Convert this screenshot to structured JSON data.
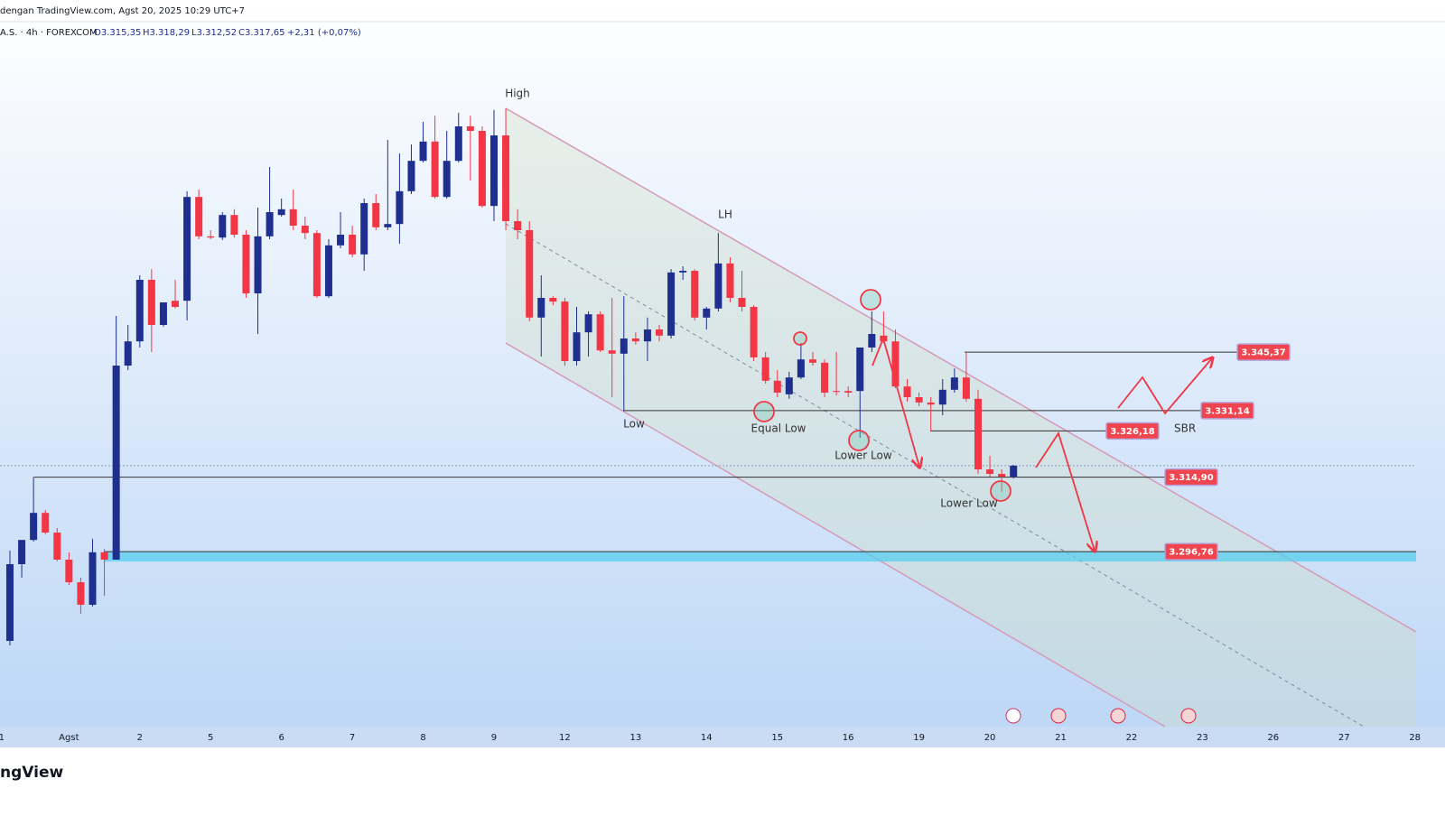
{
  "header": {
    "source": "dengan TradingView.com, Agst 20, 2025 10:29 UTC+7",
    "symbol": "A.S. · 4h · FOREXCOM",
    "open": "O3.315,35",
    "high": "H3.318,29",
    "low": "L3.312,52",
    "close": "C3.317,65",
    "change": "+2,31 (+0,07%)"
  },
  "footer": {
    "brand": "ngView"
  },
  "chart_data": {
    "type": "candlestick",
    "up_color": "#1f2f8f",
    "down_color": "#f23645",
    "ylim": [
      3254.1,
      3420.2
    ],
    "xlim": [
      -0.84,
      119.1
    ],
    "xticks": [
      {
        "value": -0.7,
        "label": "1"
      },
      {
        "value": 5,
        "label": "Agst"
      },
      {
        "value": 11,
        "label": "2"
      },
      {
        "value": 17,
        "label": "5"
      },
      {
        "value": 23,
        "label": "6"
      },
      {
        "value": 29,
        "label": "7"
      },
      {
        "value": 35,
        "label": "8"
      },
      {
        "value": 41,
        "label": "9"
      },
      {
        "value": 47,
        "label": "12"
      },
      {
        "value": 53,
        "label": "13"
      },
      {
        "value": 59,
        "label": "14"
      },
      {
        "value": 65,
        "label": "15"
      },
      {
        "value": 71,
        "label": "16"
      },
      {
        "value": 77,
        "label": "19"
      },
      {
        "value": 83,
        "label": "20"
      },
      {
        "value": 89,
        "label": "21"
      },
      {
        "value": 95,
        "label": "22"
      },
      {
        "value": 101,
        "label": "23"
      },
      {
        "value": 107,
        "label": "26"
      },
      {
        "value": 113,
        "label": "27"
      },
      {
        "value": 119,
        "label": "28"
      }
    ],
    "open": [
      3275.0,
      3293.7,
      3299.6,
      3306.2,
      3301.4,
      3294.8,
      3289.3,
      3283.8,
      3296.6,
      3294.8,
      3342.1,
      3348.0,
      3363.0,
      3352.0,
      3357.9,
      3357.9,
      3383.2,
      3373.6,
      3373.3,
      3378.8,
      3374.0,
      3359.7,
      3373.6,
      3378.8,
      3380.2,
      3376.2,
      3374.4,
      3359.0,
      3371.4,
      3374.0,
      3369.2,
      3381.7,
      3375.8,
      3376.6,
      3384.6,
      3392.0,
      3396.7,
      3383.2,
      3392.0,
      3400.4,
      3399.3,
      3381.0,
      3398.2,
      3377.3,
      3375.1,
      3353.8,
      3358.6,
      3357.7,
      3343.2,
      3350.2,
      3354.6,
      3345.8,
      3345.0,
      3348.7,
      3348.0,
      3350.9,
      3349.4,
      3364.8,
      3365.2,
      3353.8,
      3356.0,
      3367.0,
      3358.6,
      3356.4,
      3344.1,
      3338.4,
      3335.1,
      3339.2,
      3343.6,
      3342.8,
      3335.9,
      3335.9,
      3335.9,
      3346.5,
      3349.4,
      3348.0,
      3337.0,
      3334.4,
      3333.1,
      3332.6,
      3336.2,
      3339.2,
      3334.0,
      3316.8,
      3315.7,
      3315.0
    ],
    "high": [
      3297.0,
      3299.6,
      3315.0,
      3306.9,
      3302.5,
      3296.6,
      3290.4,
      3299.9,
      3297.4,
      3354.2,
      3352.0,
      3364.1,
      3365.6,
      3357.5,
      3363.0,
      3384.6,
      3385.0,
      3375.1,
      3379.5,
      3380.2,
      3375.1,
      3380.6,
      3390.5,
      3382.8,
      3385.0,
      3378.4,
      3375.1,
      3372.9,
      3379.5,
      3376.2,
      3382.8,
      3383.9,
      3397.1,
      3393.8,
      3396.0,
      3401.5,
      3403.0,
      3399.3,
      3403.7,
      3403.0,
      3400.4,
      3404.4,
      3404.8,
      3380.2,
      3377.3,
      3364.1,
      3359.0,
      3358.6,
      3356.4,
      3355.3,
      3355.3,
      3358.6,
      3359.0,
      3350.2,
      3353.8,
      3352.0,
      3365.6,
      3366.3,
      3365.6,
      3356.4,
      3374.4,
      3368.5,
      3365.2,
      3356.8,
      3345.4,
      3341.0,
      3340.6,
      3347.6,
      3345.4,
      3343.6,
      3345.4,
      3337.0,
      3346.5,
      3355.3,
      3355.3,
      3350.9,
      3338.8,
      3335.5,
      3334.4,
      3338.8,
      3341.4,
      3345.4,
      3336.2,
      3320.1,
      3316.8,
      3317.9
    ],
    "low": [
      3273.9,
      3290.4,
      3299.2,
      3301.0,
      3294.4,
      3288.6,
      3281.6,
      3283.4,
      3286.0,
      3294.8,
      3341.0,
      3346.5,
      3345.4,
      3351.6,
      3356.0,
      3353.1,
      3372.9,
      3372.9,
      3372.7,
      3373.3,
      3358.6,
      3349.8,
      3372.9,
      3378.4,
      3375.1,
      3372.9,
      3358.6,
      3358.6,
      3370.7,
      3368.5,
      3365.2,
      3375.1,
      3375.1,
      3371.8,
      3383.9,
      3391.6,
      3382.8,
      3382.8,
      3391.6,
      3387.2,
      3380.6,
      3377.3,
      3375.1,
      3372.9,
      3352.9,
      3344.3,
      3356.8,
      3342.1,
      3342.1,
      3344.3,
      3345.4,
      3334.4,
      3331.1,
      3347.2,
      3343.2,
      3348.0,
      3348.7,
      3363.0,
      3353.1,
      3350.9,
      3355.3,
      3357.5,
      3355.3,
      3343.2,
      3337.7,
      3334.4,
      3334.0,
      3338.8,
      3342.1,
      3334.4,
      3334.8,
      3334.4,
      3324.5,
      3345.4,
      3347.6,
      3336.6,
      3333.3,
      3332.2,
      3326.0,
      3330.0,
      3335.5,
      3333.3,
      3315.7,
      3315.0,
      3311.3,
      3314.6
    ],
    "close": [
      3293.7,
      3299.6,
      3306.2,
      3301.4,
      3294.8,
      3289.3,
      3283.8,
      3296.6,
      3294.8,
      3342.1,
      3348.0,
      3363.0,
      3352.0,
      3357.5,
      3356.4,
      3383.2,
      3373.6,
      3373.3,
      3378.8,
      3374.0,
      3359.7,
      3373.6,
      3379.5,
      3380.2,
      3376.2,
      3374.4,
      3359.0,
      3371.4,
      3374.0,
      3369.2,
      3381.7,
      3375.8,
      3376.6,
      3384.6,
      3392.0,
      3396.7,
      3383.2,
      3392.0,
      3400.4,
      3399.3,
      3381.0,
      3398.2,
      3377.3,
      3375.1,
      3353.8,
      3358.6,
      3357.7,
      3343.2,
      3350.2,
      3354.6,
      3345.8,
      3345.0,
      3348.7,
      3348.0,
      3350.9,
      3349.4,
      3364.8,
      3365.2,
      3353.8,
      3356.0,
      3367.0,
      3358.6,
      3356.4,
      3344.1,
      3338.4,
      3335.5,
      3339.2,
      3343.6,
      3342.8,
      3335.5,
      3335.7,
      3335.5,
      3346.5,
      3349.8,
      3348.0,
      3337.0,
      3334.4,
      3333.1,
      3332.6,
      3336.2,
      3339.2,
      3334.0,
      3316.8,
      3315.7,
      3315.0,
      3317.7
    ],
    "levels": [
      {
        "value": 3345.37,
        "label": "3.345,37"
      },
      {
        "value": 3331.14,
        "label": "3.331,14"
      },
      {
        "value": 3326.18,
        "label": "3.326,18"
      },
      {
        "value": 3314.9,
        "label": "3.314,90"
      },
      {
        "value": 3296.76,
        "label": "3.296,76"
      }
    ],
    "annotations": [
      "High",
      "LH",
      "Low",
      "Equal Low",
      "Lower Low",
      "Lower Low",
      "SBR"
    ]
  }
}
